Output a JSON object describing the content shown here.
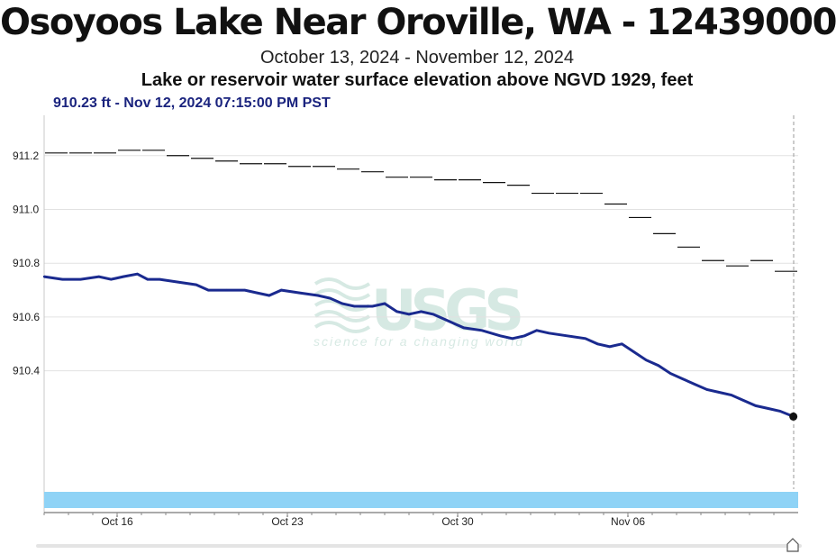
{
  "header": {
    "title": "Osoyoos Lake Near Oroville, WA - 12439000",
    "date_range": "October 13, 2024 - November 12, 2024",
    "parameter": "Lake or reservoir water surface elevation above NGVD 1929, feet",
    "current_reading": "910.23 ft - Nov 12, 2024 07:15:00 PM PST"
  },
  "watermark": {
    "logo": "USGS",
    "tagline": "science for a changing world"
  },
  "colors": {
    "series": "#1a2a8f",
    "step_series": "#111111",
    "grid": "#e2e2e2",
    "overview_bar": "#8fd3f6"
  },
  "icons": {
    "scroll_handle": "home-shaped-slider-handle-icon"
  },
  "chart_data": {
    "type": "line",
    "x_range": [
      "2024-10-13",
      "2024-11-12"
    ],
    "ylim": [
      909.96,
      911.35
    ],
    "yticks": [
      {
        "value": 911.2,
        "label": "911.2"
      },
      {
        "value": 911.0,
        "label": "911.0"
      },
      {
        "value": 910.8,
        "label": "910.8"
      },
      {
        "value": 910.6,
        "label": "910.6"
      },
      {
        "value": 910.4,
        "label": "910.4"
      }
    ],
    "xticks": [
      {
        "date": "2024-10-16",
        "label": "Oct 16"
      },
      {
        "date": "2024-10-23",
        "label": "Oct 23"
      },
      {
        "date": "2024-10-30",
        "label": "Oct 30"
      },
      {
        "date": "2024-11-06",
        "label": "Nov 06"
      }
    ],
    "grid": true,
    "current_marker": {
      "date": "2024-11-12 19:15",
      "value": 910.23
    },
    "series": [
      {
        "style": "line",
        "points": [
          [
            "2024-10-13 00:00",
            910.75
          ],
          [
            "2024-10-13 18:00",
            910.74
          ],
          [
            "2024-10-14 12:00",
            910.74
          ],
          [
            "2024-10-15 06:00",
            910.75
          ],
          [
            "2024-10-15 18:00",
            910.74
          ],
          [
            "2024-10-16 06:00",
            910.75
          ],
          [
            "2024-10-16 20:00",
            910.76
          ],
          [
            "2024-10-17 06:00",
            910.74
          ],
          [
            "2024-10-17 18:00",
            910.74
          ],
          [
            "2024-10-18 12:00",
            910.73
          ],
          [
            "2024-10-19 06:00",
            910.72
          ],
          [
            "2024-10-19 18:00",
            910.7
          ],
          [
            "2024-10-20 12:00",
            910.7
          ],
          [
            "2024-10-21 06:00",
            910.7
          ],
          [
            "2024-10-21 18:00",
            910.69
          ],
          [
            "2024-10-22 06:00",
            910.68
          ],
          [
            "2024-10-22 18:00",
            910.7
          ],
          [
            "2024-10-23 12:00",
            910.69
          ],
          [
            "2024-10-24 06:00",
            910.68
          ],
          [
            "2024-10-24 18:00",
            910.67
          ],
          [
            "2024-10-25 06:00",
            910.65
          ],
          [
            "2024-10-25 18:00",
            910.64
          ],
          [
            "2024-10-26 12:00",
            910.64
          ],
          [
            "2024-10-27 00:00",
            910.65
          ],
          [
            "2024-10-27 12:00",
            910.62
          ],
          [
            "2024-10-28 00:00",
            910.61
          ],
          [
            "2024-10-28 12:00",
            910.62
          ],
          [
            "2024-10-29 00:00",
            910.61
          ],
          [
            "2024-10-29 12:00",
            910.59
          ],
          [
            "2024-10-30 06:00",
            910.56
          ],
          [
            "2024-10-31 00:00",
            910.55
          ],
          [
            "2024-10-31 18:00",
            910.53
          ],
          [
            "2024-11-01 06:00",
            910.52
          ],
          [
            "2024-11-01 18:00",
            910.53
          ],
          [
            "2024-11-02 06:00",
            910.55
          ],
          [
            "2024-11-02 18:00",
            910.54
          ],
          [
            "2024-11-03 12:00",
            910.53
          ],
          [
            "2024-11-04 06:00",
            910.52
          ],
          [
            "2024-11-04 18:00",
            910.5
          ],
          [
            "2024-11-05 06:00",
            910.49
          ],
          [
            "2024-11-05 18:00",
            910.5
          ],
          [
            "2024-11-06 06:00",
            910.47
          ],
          [
            "2024-11-06 18:00",
            910.44
          ],
          [
            "2024-11-07 06:00",
            910.42
          ],
          [
            "2024-11-07 18:00",
            910.39
          ],
          [
            "2024-11-08 06:00",
            910.37
          ],
          [
            "2024-11-08 18:00",
            910.35
          ],
          [
            "2024-11-09 06:00",
            910.33
          ],
          [
            "2024-11-09 18:00",
            910.32
          ],
          [
            "2024-11-10 06:00",
            910.31
          ],
          [
            "2024-11-10 18:00",
            910.29
          ],
          [
            "2024-11-11 06:00",
            910.27
          ],
          [
            "2024-11-11 18:00",
            910.26
          ],
          [
            "2024-11-12 06:00",
            910.25
          ],
          [
            "2024-11-12 19:15",
            910.23
          ]
        ]
      },
      {
        "style": "daily-step",
        "points": [
          [
            "2024-10-13",
            911.21
          ],
          [
            "2024-10-14",
            911.21
          ],
          [
            "2024-10-15",
            911.21
          ],
          [
            "2024-10-16",
            911.22
          ],
          [
            "2024-10-17",
            911.22
          ],
          [
            "2024-10-18",
            911.2
          ],
          [
            "2024-10-19",
            911.19
          ],
          [
            "2024-10-20",
            911.18
          ],
          [
            "2024-10-21",
            911.17
          ],
          [
            "2024-10-22",
            911.17
          ],
          [
            "2024-10-23",
            911.16
          ],
          [
            "2024-10-24",
            911.16
          ],
          [
            "2024-10-25",
            911.15
          ],
          [
            "2024-10-26",
            911.14
          ],
          [
            "2024-10-27",
            911.12
          ],
          [
            "2024-10-28",
            911.12
          ],
          [
            "2024-10-29",
            911.11
          ],
          [
            "2024-10-30",
            911.11
          ],
          [
            "2024-10-31",
            911.1
          ],
          [
            "2024-11-01",
            911.09
          ],
          [
            "2024-11-02",
            911.06
          ],
          [
            "2024-11-03",
            911.06
          ],
          [
            "2024-11-04",
            911.06
          ],
          [
            "2024-11-05",
            911.02
          ],
          [
            "2024-11-06",
            910.97
          ],
          [
            "2024-11-07",
            910.91
          ],
          [
            "2024-11-08",
            910.86
          ],
          [
            "2024-11-09",
            910.81
          ],
          [
            "2024-11-10",
            910.79
          ],
          [
            "2024-11-11",
            910.81
          ],
          [
            "2024-11-12",
            910.77
          ]
        ]
      }
    ]
  }
}
